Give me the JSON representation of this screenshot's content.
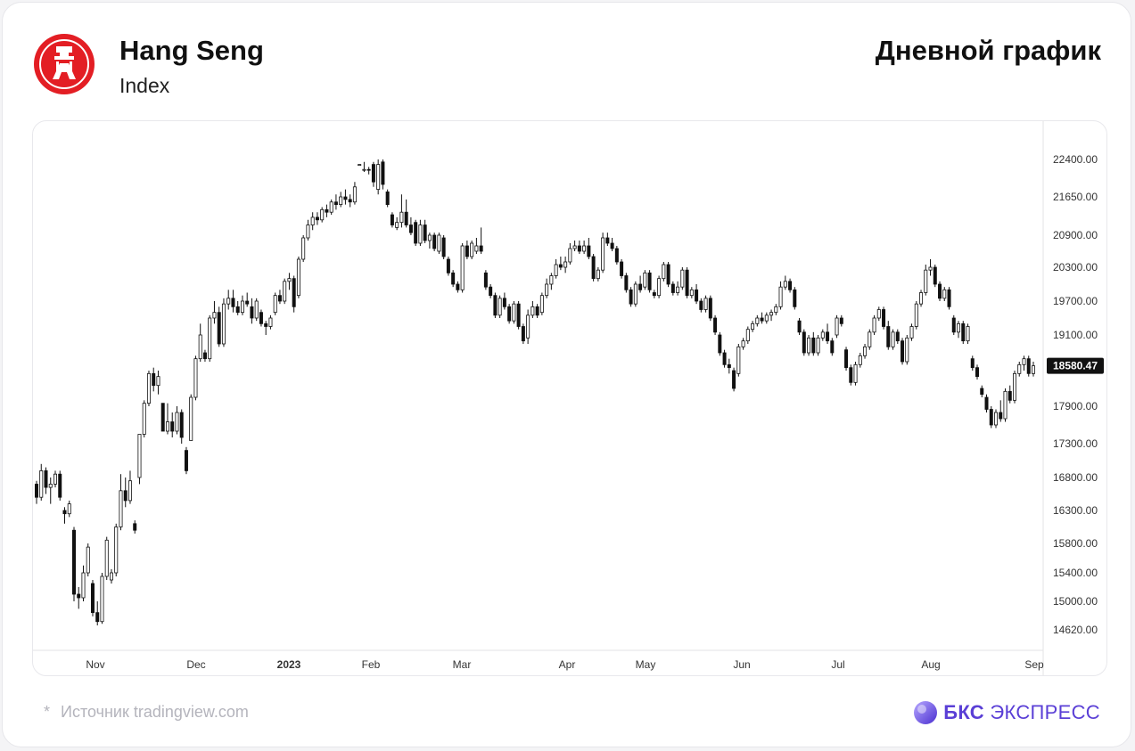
{
  "header": {
    "title": "Hang Seng",
    "subtitle": "Index",
    "chart_type_label": "Дневной график",
    "logo_icon": "hang-seng-logo-icon",
    "logo_color": "#e31e24"
  },
  "footer": {
    "star": "*",
    "source": "Источник tradingview.com",
    "brand_strong": "БКС",
    "brand_rest": "ЭКСПРЕСС",
    "brand_color": "#5a3fd6"
  },
  "chart_data": {
    "type": "candlestick",
    "title": "Hang Seng",
    "y_ticks": [
      "22400.00",
      "21650.00",
      "20900.00",
      "20300.00",
      "19700.00",
      "19100.00",
      "18580.47",
      "17900.00",
      "17300.00",
      "16800.00",
      "16300.00",
      "15800.00",
      "15400.00",
      "15000.00",
      "14620.00"
    ],
    "y_tick_values": [
      22400,
      21650,
      20900,
      20300,
      19700,
      19100,
      17900,
      17300,
      16800,
      16300,
      15800,
      15400,
      15000,
      14620
    ],
    "last_price_label": "18580.47",
    "last_price": 18580.47,
    "x_labels": [
      "Nov",
      "Dec",
      "2023",
      "Feb",
      "Mar",
      "Apr",
      "May",
      "Jun",
      "Jul",
      "Aug",
      "Sep"
    ],
    "grid": false,
    "colors": {
      "up": "#ffffff",
      "down": "#111111",
      "outline": "#111111",
      "label_bg": "#111111"
    },
    "ohlc": [
      [
        16700,
        16750,
        16400,
        16500
      ],
      [
        16500,
        17000,
        16450,
        16900
      ],
      [
        16900,
        16950,
        16550,
        16650
      ],
      [
        16650,
        16800,
        16400,
        16700
      ],
      [
        16700,
        16900,
        16650,
        16850
      ],
      [
        16850,
        16900,
        16450,
        16500
      ],
      [
        16300,
        16350,
        16100,
        16250
      ],
      [
        16250,
        16450,
        16200,
        16400
      ],
      [
        16000,
        16050,
        15000,
        15100
      ],
      [
        15100,
        15200,
        14900,
        15050
      ],
      [
        15050,
        15500,
        15000,
        15400
      ],
      [
        15400,
        15800,
        15350,
        15750
      ],
      [
        15250,
        15300,
        14800,
        14850
      ],
      [
        14850,
        15000,
        14680,
        14730
      ],
      [
        14730,
        15400,
        14700,
        15350
      ],
      [
        15350,
        15900,
        15300,
        15850
      ],
      [
        15300,
        15450,
        15250,
        15400
      ],
      [
        15400,
        16100,
        15350,
        16050
      ],
      [
        16050,
        16850,
        16000,
        16600
      ],
      [
        16600,
        16800,
        16350,
        16450
      ],
      [
        16450,
        16900,
        16400,
        16750
      ],
      [
        16100,
        16150,
        15950,
        16000
      ],
      [
        16800,
        17450,
        16700,
        17450
      ],
      [
        17450,
        18000,
        17400,
        17950
      ],
      [
        17950,
        18500,
        17900,
        18450
      ],
      [
        18450,
        18550,
        18150,
        18250
      ],
      [
        18250,
        18500,
        18100,
        18400
      ],
      [
        17950,
        17950,
        17500,
        17500
      ],
      [
        17500,
        17950,
        17450,
        17650
      ],
      [
        17650,
        17800,
        17400,
        17500
      ],
      [
        17500,
        17900,
        17450,
        17800
      ],
      [
        17800,
        17850,
        17300,
        17400
      ],
      [
        17200,
        17250,
        16850,
        16900
      ],
      [
        17350,
        18100,
        17350,
        18050
      ],
      [
        18050,
        18750,
        18000,
        18700
      ],
      [
        18700,
        19300,
        18650,
        19100
      ],
      [
        18800,
        18850,
        18650,
        18700
      ],
      [
        18700,
        19450,
        18650,
        19400
      ],
      [
        19400,
        19700,
        19300,
        19500
      ],
      [
        19500,
        19600,
        18900,
        18950
      ],
      [
        18950,
        19750,
        18900,
        19650
      ],
      [
        19650,
        19900,
        19550,
        19750
      ],
      [
        19750,
        19900,
        19500,
        19600
      ],
      [
        19600,
        19700,
        19450,
        19500
      ],
      [
        19500,
        19800,
        19450,
        19700
      ],
      [
        19700,
        19850,
        19600,
        19650
      ],
      [
        19600,
        19750,
        19300,
        19400
      ],
      [
        19400,
        19750,
        19350,
        19700
      ],
      [
        19500,
        19550,
        19250,
        19300
      ],
      [
        19300,
        19350,
        19100,
        19250
      ],
      [
        19250,
        19450,
        19200,
        19400
      ],
      [
        19500,
        19850,
        19450,
        19800
      ],
      [
        19800,
        19900,
        19650,
        19700
      ],
      [
        19700,
        20100,
        19650,
        20050
      ],
      [
        20050,
        20200,
        19900,
        20100
      ],
      [
        20100,
        20150,
        19500,
        19600
      ],
      [
        19800,
        20500,
        19750,
        20450
      ],
      [
        20450,
        20900,
        20400,
        20850
      ],
      [
        20850,
        21200,
        20800,
        21100
      ],
      [
        21100,
        21350,
        21000,
        21250
      ],
      [
        21250,
        21350,
        21100,
        21200
      ],
      [
        21200,
        21450,
        21150,
        21400
      ],
      [
        21400,
        21500,
        21250,
        21350
      ],
      [
        21350,
        21600,
        21300,
        21550
      ],
      [
        21550,
        21700,
        21400,
        21500
      ],
      [
        21500,
        21750,
        21450,
        21650
      ],
      [
        21650,
        21800,
        21500,
        21600
      ],
      [
        21600,
        21700,
        21450,
        21550
      ],
      [
        21550,
        21950,
        21500,
        21850
      ],
      [
        22300,
        22550,
        22250,
        22500
      ],
      [
        22500,
        22650,
        22450,
        22600
      ],
      [
        22600,
        22700,
        22250,
        22300
      ],
      [
        22300,
        22350,
        21850,
        21950
      ],
      [
        21800,
        22400,
        21700,
        22300
      ],
      [
        22350,
        22400,
        21800,
        21900
      ],
      [
        21750,
        21800,
        21450,
        21500
      ],
      [
        21300,
        21350,
        21050,
        21100
      ],
      [
        21050,
        21250,
        21000,
        21150
      ],
      [
        21150,
        21700,
        21050,
        21350
      ],
      [
        21350,
        21600,
        21050,
        21100
      ],
      [
        21100,
        21250,
        20900,
        20950
      ],
      [
        21150,
        21200,
        20700,
        20750
      ],
      [
        20750,
        21200,
        20700,
        21100
      ],
      [
        21100,
        21200,
        20750,
        20800
      ],
      [
        20800,
        20950,
        20650,
        20900
      ],
      [
        20900,
        20950,
        20600,
        20650
      ],
      [
        20600,
        20950,
        20550,
        20900
      ],
      [
        20850,
        20900,
        20450,
        20500
      ],
      [
        20450,
        20500,
        20150,
        20200
      ],
      [
        20200,
        20250,
        19950,
        20000
      ],
      [
        20000,
        20050,
        19850,
        19900
      ],
      [
        19900,
        20750,
        19850,
        20700
      ],
      [
        20700,
        20800,
        20450,
        20500
      ],
      [
        20500,
        20800,
        20450,
        20750
      ],
      [
        20600,
        20850,
        20550,
        20700
      ],
      [
        20700,
        21050,
        20550,
        20600
      ],
      [
        20200,
        20250,
        19900,
        19950
      ],
      [
        19950,
        20000,
        19750,
        19800
      ],
      [
        19800,
        19850,
        19400,
        19450
      ],
      [
        19450,
        19800,
        19400,
        19750
      ],
      [
        19750,
        19850,
        19550,
        19600
      ],
      [
        19600,
        19650,
        19300,
        19350
      ],
      [
        19350,
        19700,
        19300,
        19650
      ],
      [
        19650,
        19700,
        19200,
        19250
      ],
      [
        19250,
        19300,
        18950,
        19000
      ],
      [
        19050,
        19550,
        18950,
        19450
      ],
      [
        19450,
        19700,
        19400,
        19600
      ],
      [
        19600,
        19650,
        19400,
        19450
      ],
      [
        19500,
        19850,
        19450,
        19800
      ],
      [
        19800,
        20100,
        19750,
        20000
      ],
      [
        20000,
        20200,
        19900,
        20150
      ],
      [
        20150,
        20450,
        20100,
        20350
      ],
      [
        20350,
        20500,
        20250,
        20300
      ],
      [
        20300,
        20500,
        20200,
        20400
      ],
      [
        20400,
        20750,
        20350,
        20650
      ],
      [
        20650,
        20800,
        20600,
        20700
      ],
      [
        20700,
        20800,
        20550,
        20600
      ],
      [
        20600,
        20800,
        20550,
        20700
      ],
      [
        20700,
        20850,
        20450,
        20500
      ],
      [
        20500,
        20550,
        20050,
        20100
      ],
      [
        20100,
        20300,
        20050,
        20250
      ],
      [
        20250,
        20950,
        20200,
        20850
      ],
      [
        20850,
        20950,
        20700,
        20750
      ],
      [
        20750,
        20850,
        20600,
        20650
      ],
      [
        20650,
        20700,
        20350,
        20400
      ],
      [
        20400,
        20450,
        20100,
        20150
      ],
      [
        20150,
        20200,
        19850,
        19900
      ],
      [
        19900,
        19950,
        19600,
        19650
      ],
      [
        19650,
        20050,
        19600,
        20000
      ],
      [
        20000,
        20150,
        19850,
        19900
      ],
      [
        19950,
        20250,
        19900,
        20200
      ],
      [
        20200,
        20250,
        19850,
        19900
      ],
      [
        19850,
        19900,
        19750,
        19800
      ],
      [
        19800,
        20150,
        19750,
        20100
      ],
      [
        20100,
        20400,
        20050,
        20350
      ],
      [
        20350,
        20400,
        19950,
        20000
      ],
      [
        20000,
        20050,
        19800,
        19850
      ],
      [
        19850,
        20050,
        19800,
        19950
      ],
      [
        19950,
        20300,
        19900,
        20250
      ],
      [
        20250,
        20300,
        19750,
        19800
      ],
      [
        19800,
        19950,
        19750,
        19900
      ],
      [
        19900,
        20000,
        19650,
        19700
      ],
      [
        19700,
        19750,
        19500,
        19550
      ],
      [
        19550,
        19800,
        19500,
        19750
      ],
      [
        19750,
        19800,
        19350,
        19400
      ],
      [
        19400,
        19450,
        19100,
        19150
      ],
      [
        19100,
        19150,
        18750,
        18800
      ],
      [
        18800,
        18850,
        18550,
        18600
      ],
      [
        18600,
        18700,
        18450,
        18550
      ],
      [
        18500,
        18550,
        18150,
        18200
      ],
      [
        18450,
        18950,
        18400,
        18900
      ],
      [
        18900,
        19050,
        18850,
        19000
      ],
      [
        19000,
        19250,
        18950,
        19200
      ],
      [
        19200,
        19350,
        19150,
        19300
      ],
      [
        19300,
        19450,
        19250,
        19400
      ],
      [
        19400,
        19500,
        19300,
        19350
      ],
      [
        19350,
        19500,
        19300,
        19450
      ],
      [
        19450,
        19550,
        19350,
        19500
      ],
      [
        19500,
        19650,
        19450,
        19600
      ],
      [
        19600,
        20050,
        19550,
        19950
      ],
      [
        19950,
        20150,
        19900,
        20050
      ],
      [
        20050,
        20100,
        19850,
        19900
      ],
      [
        19900,
        19950,
        19550,
        19600
      ],
      [
        19350,
        19400,
        19100,
        19150
      ],
      [
        19150,
        19200,
        18750,
        18800
      ],
      [
        18800,
        19100,
        18750,
        19050
      ],
      [
        19050,
        19150,
        18750,
        18800
      ],
      [
        18800,
        19100,
        18750,
        19050
      ],
      [
        19050,
        19200,
        19000,
        19150
      ],
      [
        19150,
        19300,
        18950,
        19000
      ],
      [
        19000,
        19050,
        18750,
        18800
      ],
      [
        19100,
        19450,
        19050,
        19400
      ],
      [
        19400,
        19450,
        19250,
        19300
      ],
      [
        18850,
        18900,
        18500,
        18550
      ],
      [
        18550,
        18600,
        18250,
        18300
      ],
      [
        18300,
        18650,
        18250,
        18600
      ],
      [
        18600,
        18800,
        18550,
        18750
      ],
      [
        18750,
        18950,
        18700,
        18900
      ],
      [
        18900,
        19200,
        18850,
        19150
      ],
      [
        19150,
        19450,
        19100,
        19400
      ],
      [
        19400,
        19600,
        19350,
        19550
      ],
      [
        19550,
        19600,
        19200,
        19250
      ],
      [
        19250,
        19350,
        18850,
        18900
      ],
      [
        18900,
        19200,
        18850,
        19150
      ],
      [
        19150,
        19200,
        18950,
        19000
      ],
      [
        19000,
        19050,
        18600,
        18650
      ],
      [
        18650,
        19100,
        18600,
        19050
      ],
      [
        19050,
        19300,
        19000,
        19250
      ],
      [
        19250,
        19700,
        19200,
        19650
      ],
      [
        19650,
        19900,
        19600,
        19850
      ],
      [
        19850,
        20350,
        19800,
        20250
      ],
      [
        20250,
        20450,
        20150,
        20300
      ],
      [
        20300,
        20350,
        19950,
        20000
      ],
      [
        20000,
        20050,
        19700,
        19750
      ],
      [
        19750,
        19950,
        19700,
        19900
      ],
      [
        19900,
        19950,
        19550,
        19600
      ],
      [
        19400,
        19450,
        19100,
        19150
      ],
      [
        19150,
        19350,
        19050,
        19300
      ],
      [
        19300,
        19350,
        18950,
        19000
      ],
      [
        19000,
        19300,
        18950,
        19250
      ],
      [
        18700,
        18750,
        18500,
        18550
      ],
      [
        18550,
        18600,
        18350,
        18400
      ],
      [
        18200,
        18250,
        18050,
        18100
      ],
      [
        18050,
        18100,
        17800,
        17850
      ],
      [
        17850,
        17900,
        17550,
        17600
      ],
      [
        17600,
        17850,
        17550,
        17800
      ],
      [
        17800,
        18000,
        17650,
        17700
      ],
      [
        17700,
        18200,
        17650,
        18150
      ],
      [
        18150,
        18250,
        17950,
        18000
      ],
      [
        18000,
        18500,
        17950,
        18450
      ],
      [
        18450,
        18650,
        18400,
        18600
      ],
      [
        18600,
        18750,
        18500,
        18700
      ],
      [
        18700,
        18750,
        18400,
        18450
      ],
      [
        18450,
        18650,
        18400,
        18580.47
      ]
    ],
    "x_label_index": [
      6,
      39,
      60,
      81,
      102,
      123,
      144,
      165,
      186,
      207,
      228
    ]
  }
}
